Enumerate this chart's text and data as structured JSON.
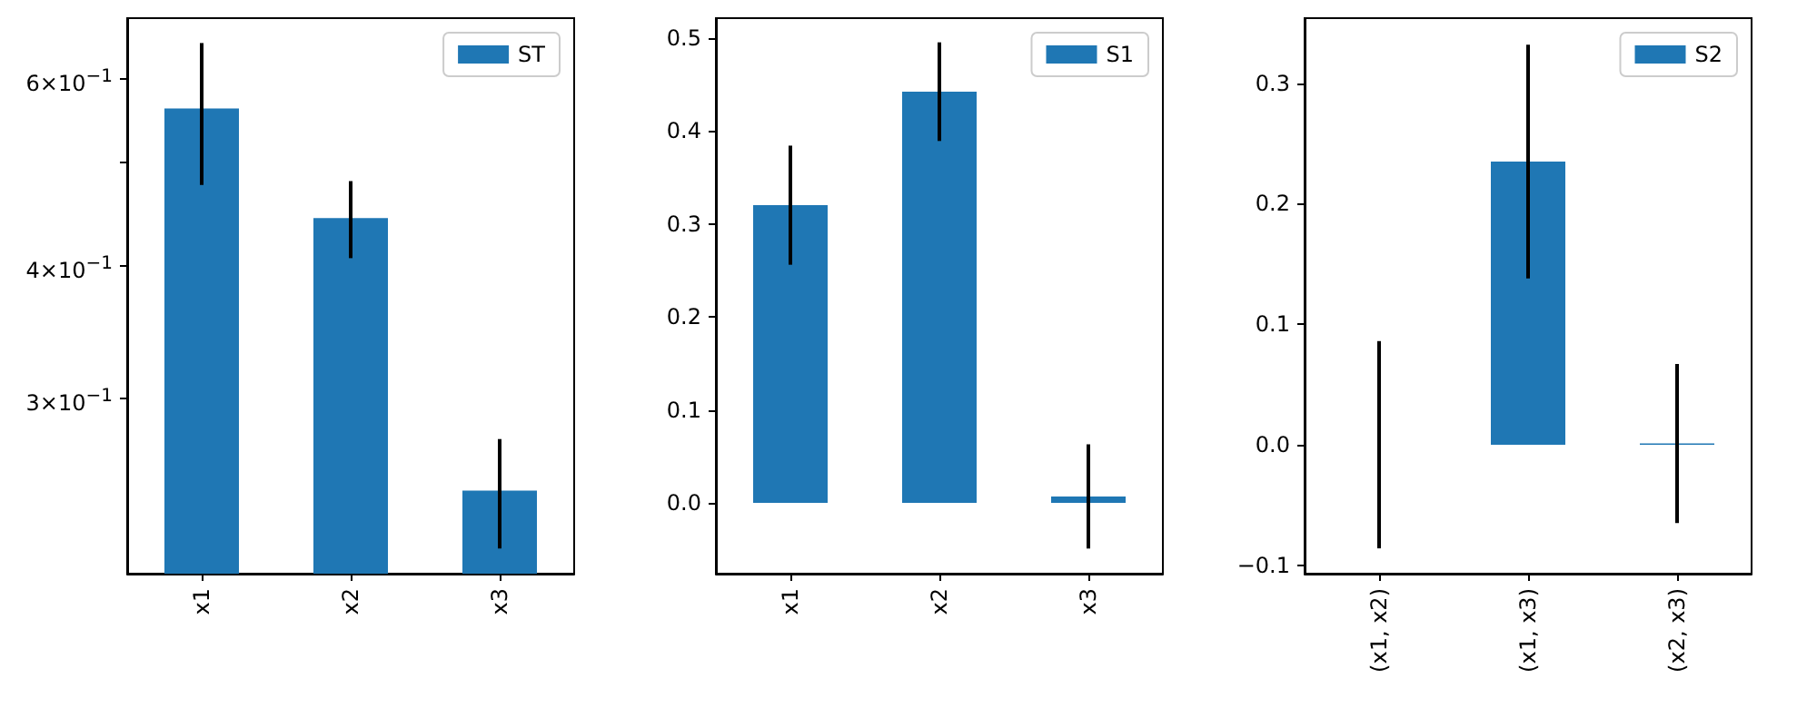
{
  "chart_data": [
    {
      "type": "bar",
      "categories": [
        "x1",
        "x2",
        "x3"
      ],
      "series": [
        {
          "name": "ST",
          "color": "#1f77b4",
          "values": [
            0.562,
            0.443,
            0.245
          ],
          "errors": [
            0.086,
            0.037,
            0.029
          ]
        }
      ],
      "log": "y",
      "ylim": [
        0.2045,
        0.684
      ],
      "yticks": [
        {
          "value": 0.3,
          "label": "3×10$^{−1}$"
        },
        {
          "value": 0.4,
          "label": "4×10$^{−1}$"
        },
        {
          "value": 0.5,
          "label": null
        },
        {
          "value": 0.6,
          "label": "6×10$^{−1}$"
        }
      ],
      "legend": "top right",
      "grid": false
    },
    {
      "type": "bar",
      "categories": [
        "x1",
        "x2",
        "x3"
      ],
      "series": [
        {
          "name": "S1",
          "color": "#1f77b4",
          "values": [
            0.32,
            0.442,
            0.007
          ],
          "errors": [
            0.064,
            0.053,
            0.056
          ]
        }
      ],
      "ylim": [
        -0.076,
        0.521
      ],
      "yticks": [
        {
          "value": 0,
          "label": "0.0"
        },
        0.1,
        0.2,
        0.3,
        0.4,
        0.5
      ],
      "legend": "top right",
      "grid": false
    },
    {
      "type": "bar",
      "categories": [
        "(x1, x2)",
        "(x1, x3)",
        "(x2, x3)"
      ],
      "series": [
        {
          "name": "S2",
          "color": "#1f77b4",
          "values": [
            0.0,
            0.235,
            0.001
          ],
          "errors": [
            0.086,
            0.097,
            0.066
          ]
        }
      ],
      "ylim": [
        -0.107,
        0.354
      ],
      "yticks": [
        -0.1,
        {
          "value": 0,
          "label": "0.0"
        },
        0.1,
        0.2,
        0.3
      ],
      "legend": "top right",
      "grid": false
    }
  ]
}
